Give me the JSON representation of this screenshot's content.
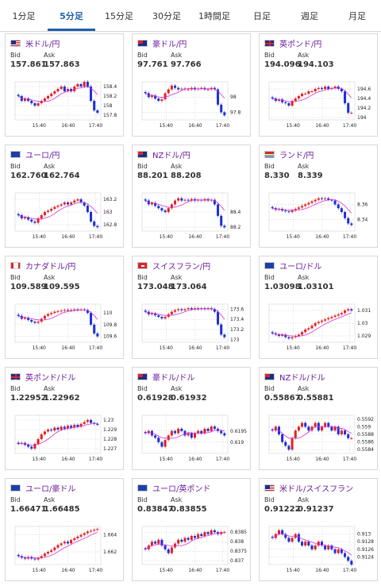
{
  "tabs": [
    {
      "label": "1分足",
      "active": false
    },
    {
      "label": "5分足",
      "active": true
    },
    {
      "label": "15分足",
      "active": false
    },
    {
      "label": "30分足",
      "active": false
    },
    {
      "label": "1時間足",
      "active": false
    },
    {
      "label": "日足",
      "active": false
    },
    {
      "label": "週足",
      "active": false
    },
    {
      "label": "月足",
      "active": false
    }
  ],
  "labels": {
    "bid": "Bid",
    "ask": "Ask"
  },
  "colors": {
    "up": "#e02020",
    "down": "#1b2fd6",
    "ma": "#d632d6",
    "ma2": "#4a8fe0",
    "pair": "#6a1b9a"
  },
  "cards": [
    {
      "pair": "米ドル/円",
      "flag": "us-flag-icon",
      "bid": "157.861",
      "ask": "157.863",
      "chart_data": {
        "type": "candlestick",
        "xlabels": [
          "15:40",
          "16:40",
          "17:40"
        ],
        "yticks": [
          "158.4",
          "158.2",
          "158",
          "157.8"
        ],
        "ylim": [
          157.7,
          158.5
        ],
        "closes": [
          158.2,
          158.1,
          158.15,
          158.1,
          158.05,
          158.0,
          158.05,
          158.1,
          158.15,
          158.2,
          158.25,
          158.3,
          158.35,
          158.4,
          158.3,
          158.35,
          158.3,
          158.4,
          158.45,
          158.4,
          158.5,
          158.4,
          158.1,
          157.9,
          157.85
        ]
      }
    },
    {
      "pair": "豪ドル/円",
      "flag": "au-flag-icon",
      "bid": "97.761",
      "ask": "97.766",
      "chart_data": {
        "type": "candlestick",
        "xlabels": [
          "15:40",
          "16:40",
          "17:40"
        ],
        "yticks": [
          "98",
          "97.8"
        ],
        "ylim": [
          97.7,
          98.2
        ],
        "closes": [
          98.05,
          98.0,
          98.02,
          97.98,
          97.95,
          97.97,
          98.05,
          98.1,
          98.15,
          98.12,
          98.1,
          98.11,
          98.1,
          98.1,
          98.12,
          98.1,
          98.11,
          98.12,
          98.1,
          98.1,
          98.12,
          98.1,
          97.9,
          97.8,
          97.76
        ]
      }
    },
    {
      "pair": "英ポンド/円",
      "flag": "gb-flag-icon",
      "bid": "194.096",
      "ask": "194.103",
      "chart_data": {
        "type": "candlestick",
        "xlabels": [
          "15:40",
          "16:40",
          "17:40"
        ],
        "yticks": [
          "194.6",
          "194.4",
          "194.2",
          "194"
        ],
        "ylim": [
          193.95,
          194.75
        ],
        "closes": [
          194.4,
          194.35,
          194.38,
          194.32,
          194.3,
          194.25,
          194.35,
          194.4,
          194.45,
          194.5,
          194.5,
          194.55,
          194.55,
          194.6,
          194.62,
          194.6,
          194.65,
          194.6,
          194.62,
          194.65,
          194.6,
          194.55,
          194.3,
          194.1,
          194.1
        ]
      }
    },
    {
      "pair": "ユーロ/円",
      "flag": "eu-flag-icon",
      "bid": "162.760",
      "ask": "162.764",
      "chart_data": {
        "type": "candlestick",
        "xlabels": [
          "15:40",
          "16:40",
          "17:40"
        ],
        "yticks": [
          "163.2",
          "163",
          "162.8"
        ],
        "ylim": [
          162.7,
          163.3
        ],
        "closes": [
          162.95,
          162.9,
          162.92,
          162.88,
          162.85,
          162.83,
          162.9,
          162.95,
          163.0,
          163.02,
          163.05,
          163.08,
          163.1,
          163.12,
          163.15,
          163.12,
          163.15,
          163.18,
          163.2,
          163.15,
          163.1,
          163.0,
          162.85,
          162.78,
          162.76
        ]
      }
    },
    {
      "pair": "NZドル/円",
      "flag": "nz-flag-icon",
      "bid": "88.201",
      "ask": "88.208",
      "chart_data": {
        "type": "candlestick",
        "xlabels": [
          "15:40",
          "16:40",
          "17:40"
        ],
        "yticks": [
          "88.4",
          "88.2"
        ],
        "ylim": [
          88.15,
          88.65
        ],
        "closes": [
          88.55,
          88.5,
          88.52,
          88.48,
          88.45,
          88.42,
          88.4,
          88.45,
          88.5,
          88.55,
          88.58,
          88.55,
          88.56,
          88.55,
          88.57,
          88.55,
          88.56,
          88.55,
          88.57,
          88.55,
          88.56,
          88.5,
          88.35,
          88.22,
          88.2
        ]
      }
    },
    {
      "pair": "ランド/円",
      "flag": "za-flag-icon",
      "bid": "8.330",
      "ask": "8.339",
      "chart_data": {
        "type": "candlestick",
        "xlabels": [
          "15:40",
          "16:40",
          "17:40"
        ],
        "yticks": [
          "8.36",
          "8.34"
        ],
        "ylim": [
          8.325,
          8.375
        ],
        "closes": [
          8.355,
          8.353,
          8.354,
          8.352,
          8.351,
          8.35,
          8.352,
          8.354,
          8.356,
          8.358,
          8.36,
          8.362,
          8.364,
          8.366,
          8.368,
          8.367,
          8.368,
          8.366,
          8.365,
          8.36,
          8.355,
          8.35,
          8.342,
          8.335,
          8.333
        ]
      }
    },
    {
      "pair": "カナダドル/円",
      "flag": "ca-flag-icon",
      "bid": "109.589",
      "ask": "109.595",
      "chart_data": {
        "type": "candlestick",
        "xlabels": [
          "15:40",
          "16:40",
          "17:40"
        ],
        "yticks": [
          "110",
          "109.8",
          "109.6"
        ],
        "ylim": [
          109.5,
          110.15
        ],
        "closes": [
          109.95,
          109.9,
          109.92,
          109.88,
          109.85,
          109.83,
          109.85,
          109.9,
          109.95,
          109.98,
          110.0,
          110.02,
          110.03,
          110.04,
          110.05,
          110.04,
          110.05,
          110.06,
          110.05,
          110.06,
          110.05,
          110.0,
          109.8,
          109.65,
          109.6
        ]
      }
    },
    {
      "pair": "スイスフラン/円",
      "flag": "ch-flag-icon",
      "bid": "173.048",
      "ask": "173.064",
      "chart_data": {
        "type": "candlestick",
        "xlabels": [
          "15:40",
          "16:40",
          "17:40"
        ],
        "yticks": [
          "173.6",
          "173.4",
          "173.2",
          "173"
        ],
        "ylim": [
          172.95,
          173.7
        ],
        "closes": [
          173.55,
          173.5,
          173.52,
          173.48,
          173.45,
          173.42,
          173.45,
          173.5,
          173.55,
          173.58,
          173.6,
          173.58,
          173.6,
          173.62,
          173.6,
          173.62,
          173.6,
          173.62,
          173.6,
          173.62,
          173.6,
          173.55,
          173.3,
          173.1,
          173.05
        ]
      }
    },
    {
      "pair": "ユーロ/ドル",
      "flag": "eu-us-flag-icon",
      "bid": "1.03098",
      "ask": "1.03101",
      "chart_data": {
        "type": "candlestick",
        "xlabels": [
          "15:40",
          "16:40",
          "17:40"
        ],
        "yticks": [
          "1.031",
          "1.03",
          "1.029"
        ],
        "ylim": [
          1.0285,
          1.0315
        ],
        "closes": [
          1.0292,
          1.0291,
          1.029,
          1.0291,
          1.0289,
          1.0288,
          1.0289,
          1.029,
          1.0291,
          1.0293,
          1.0295,
          1.0296,
          1.0298,
          1.03,
          1.0301,
          1.0302,
          1.0303,
          1.0304,
          1.0305,
          1.0306,
          1.0307,
          1.0308,
          1.031,
          1.0311,
          1.031
        ]
      }
    },
    {
      "pair": "英ポンド/ドル",
      "flag": "gb-us-flag-icon",
      "bid": "1.22952",
      "ask": "1.22962",
      "chart_data": {
        "type": "candlestick",
        "xlabels": [
          "15:40",
          "16:40",
          "17:40"
        ],
        "yticks": [
          "1.23",
          "1.229",
          "1.228",
          "1.227"
        ],
        "ylim": [
          1.2265,
          1.2305
        ],
        "closes": [
          1.2275,
          1.2276,
          1.2274,
          1.2272,
          1.227,
          1.2275,
          1.228,
          1.2285,
          1.2288,
          1.229,
          1.2289,
          1.2292,
          1.229,
          1.2293,
          1.2291,
          1.2294,
          1.2292,
          1.2295,
          1.2293,
          1.2296,
          1.2298,
          1.23,
          1.2297,
          1.2296,
          1.2295
        ]
      }
    },
    {
      "pair": "豪ドル/ドル",
      "flag": "au-us-flag-icon",
      "bid": "0.61928",
      "ask": "0.61932",
      "chart_data": {
        "type": "candlestick",
        "xlabels": [
          "15:40",
          "16:40",
          "17:40"
        ],
        "yticks": [
          "0.6195",
          "0.619"
        ],
        "ylim": [
          0.6185,
          0.6202
        ],
        "closes": [
          0.6194,
          0.6195,
          0.6193,
          0.6192,
          0.619,
          0.6188,
          0.6191,
          0.6193,
          0.6195,
          0.6194,
          0.6196,
          0.6195,
          0.6193,
          0.6194,
          0.6192,
          0.6194,
          0.6195,
          0.6194,
          0.6196,
          0.6195,
          0.6197,
          0.6196,
          0.6195,
          0.6194,
          0.6193
        ]
      }
    },
    {
      "pair": "NZドル/ドル",
      "flag": "nz-us-flag-icon",
      "bid": "0.55867",
      "ask": "0.55881",
      "chart_data": {
        "type": "candlestick",
        "xlabels": [
          "15:40",
          "16:40",
          "17:40"
        ],
        "yticks": [
          "0.5592",
          "0.559",
          "0.5588",
          "0.5586",
          "0.5584"
        ],
        "ylim": [
          0.5583,
          0.5593
        ],
        "closes": [
          0.5589,
          0.559,
          0.5588,
          0.5586,
          0.5585,
          0.5584,
          0.5587,
          0.5589,
          0.559,
          0.5591,
          0.559,
          0.5589,
          0.559,
          0.5591,
          0.5589,
          0.559,
          0.5591,
          0.559,
          0.5589,
          0.559,
          0.5588,
          0.5589,
          0.5588,
          0.5587,
          0.5587
        ]
      }
    },
    {
      "pair": "ユーロ/豪ドル",
      "flag": "eu-au-flag-icon",
      "bid": "1.66471",
      "ask": "1.66485",
      "chart_data": {
        "type": "candlestick",
        "xlabels": [
          "15:40",
          "16:40",
          "17:40"
        ],
        "yticks": [
          "1.664",
          "1.662"
        ],
        "ylim": [
          1.6605,
          1.665
        ],
        "closes": [
          1.6615,
          1.6613,
          1.6612,
          1.6614,
          1.6612,
          1.6611,
          1.6613,
          1.6615,
          1.6618,
          1.662,
          1.6622,
          1.6625,
          1.6628,
          1.663,
          1.6632,
          1.663,
          1.6634,
          1.6636,
          1.6638,
          1.664,
          1.6642,
          1.6644,
          1.6645,
          1.6646,
          1.6647
        ]
      }
    },
    {
      "pair": "ユーロ/英ポンド",
      "flag": "eu-gb-flag-icon",
      "bid": "0.83847",
      "ask": "0.83855",
      "chart_data": {
        "type": "candlestick",
        "xlabels": [
          "15:40",
          "16:40",
          "17:40"
        ],
        "yticks": [
          "0.8385",
          "0.838",
          "0.8375",
          "0.837"
        ],
        "ylim": [
          0.8368,
          0.8388
        ],
        "closes": [
          0.8376,
          0.8378,
          0.838,
          0.8379,
          0.8381,
          0.8378,
          0.8376,
          0.8374,
          0.8377,
          0.8379,
          0.8381,
          0.838,
          0.8382,
          0.8381,
          0.8383,
          0.8382,
          0.8384,
          0.8383,
          0.8385,
          0.8384,
          0.8386,
          0.8385,
          0.8384,
          0.8385,
          0.8385
        ]
      }
    },
    {
      "pair": "米ドル/スイスフラン",
      "flag": "us-ch-flag-icon",
      "bid": "0.91222",
      "ask": "0.91237",
      "chart_data": {
        "type": "candlestick",
        "xlabels": [
          "15:40",
          "16:40",
          "17:40"
        ],
        "yticks": [
          "0.913",
          "0.9128",
          "0.9126",
          "0.9124"
        ],
        "ylim": [
          0.9122,
          0.9132
        ],
        "closes": [
          0.9129,
          0.913,
          0.9131,
          0.913,
          0.9129,
          0.9128,
          0.9129,
          0.913,
          0.9128,
          0.9127,
          0.9128,
          0.9127,
          0.9126,
          0.9127,
          0.9128,
          0.9127,
          0.9126,
          0.9127,
          0.9126,
          0.9125,
          0.9126,
          0.9125,
          0.9124,
          0.9123,
          0.9122
        ]
      }
    }
  ]
}
